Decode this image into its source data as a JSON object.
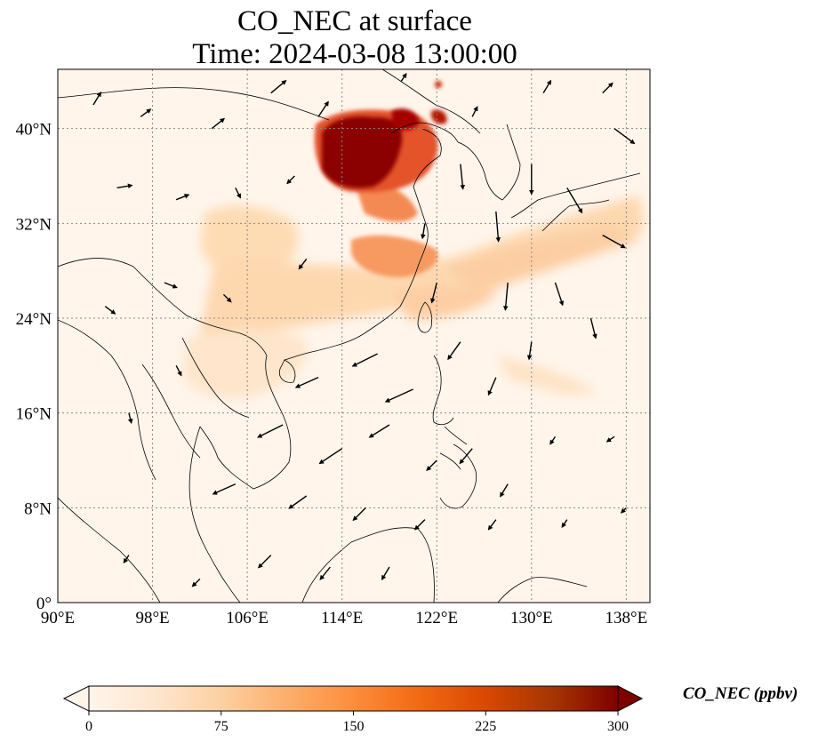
{
  "title": {
    "line1": "CO_NEC at surface",
    "line2": "Time: 2024-03-08 13:00:00"
  },
  "axes": {
    "lon_ticks": [
      "90°E",
      "98°E",
      "106°E",
      "114°E",
      "122°E",
      "130°E",
      "138°E"
    ],
    "lat_ticks": [
      "0°",
      "8°N",
      "16°N",
      "24°N",
      "32°N",
      "40°N"
    ],
    "lon_values": [
      90,
      98,
      106,
      114,
      122,
      130,
      138
    ],
    "lat_values": [
      0,
      8,
      16,
      24,
      32,
      40
    ],
    "lon_range": [
      90,
      140
    ],
    "lat_range": [
      0,
      45
    ],
    "grid": "dotted"
  },
  "colorbar": {
    "label": "CO_NEC (ppbv)",
    "ticks": [
      "0",
      "75",
      "150",
      "225",
      "300"
    ],
    "tick_values": [
      0,
      75,
      150,
      225,
      300
    ],
    "range": [
      0,
      300
    ],
    "extend": "both",
    "colormap": [
      "#fff5eb",
      "#fee6ce",
      "#fdd0a2",
      "#fdae6b",
      "#fd8d3c",
      "#f16913",
      "#d94801",
      "#a63603",
      "#7f0000"
    ]
  },
  "chart_data": {
    "type": "heatmap",
    "variable": "CO_NEC",
    "units": "ppbv",
    "plumes": [
      {
        "lon": 115.5,
        "lat": 38.5,
        "value": 300
      },
      {
        "lon": 118.5,
        "lat": 39.5,
        "value": 260
      },
      {
        "lon": 121.5,
        "lat": 39.6,
        "value": 230
      },
      {
        "lon": 118.0,
        "lat": 34.5,
        "value": 170
      },
      {
        "lon": 118.0,
        "lat": 30.0,
        "value": 140
      },
      {
        "lon": 104.0,
        "lat": 31.0,
        "value": 110
      },
      {
        "lon": 108.0,
        "lat": 32.0,
        "value": 100
      },
      {
        "lon": 128.0,
        "lat": 29.5,
        "value": 90
      },
      {
        "lon": 134.0,
        "lat": 31.0,
        "value": 85
      },
      {
        "lon": 112.0,
        "lat": 25.0,
        "value": 80
      },
      {
        "lon": 104.0,
        "lat": 19.0,
        "value": 70
      }
    ],
    "wind_vectors": [
      {
        "lon": 93,
        "lat": 42,
        "u": 0.3,
        "v": 0.5
      },
      {
        "lon": 97,
        "lat": 41,
        "u": 0.4,
        "v": 0.3
      },
      {
        "lon": 103,
        "lat": 40,
        "u": 0.5,
        "v": 0.4
      },
      {
        "lon": 108,
        "lat": 43,
        "u": 0.6,
        "v": 0.5
      },
      {
        "lon": 112,
        "lat": 41,
        "u": 0.4,
        "v": 0.6
      },
      {
        "lon": 95,
        "lat": 35,
        "u": 0.6,
        "v": 0.1
      },
      {
        "lon": 100,
        "lat": 34,
        "u": 0.5,
        "v": 0.2
      },
      {
        "lon": 105,
        "lat": 35,
        "u": 0.2,
        "v": -0.4
      },
      {
        "lon": 110,
        "lat": 36,
        "u": -0.3,
        "v": -0.3
      },
      {
        "lon": 124,
        "lat": 37,
        "u": 0.1,
        "v": -1.0
      },
      {
        "lon": 127,
        "lat": 33,
        "u": 0.1,
        "v": -1.2
      },
      {
        "lon": 130,
        "lat": 37,
        "u": 0.0,
        "v": -1.2
      },
      {
        "lon": 133,
        "lat": 35,
        "u": 0.6,
        "v": -1.0
      },
      {
        "lon": 137,
        "lat": 40,
        "u": 0.8,
        "v": -0.6
      },
      {
        "lon": 136,
        "lat": 31,
        "u": 0.9,
        "v": -0.5
      },
      {
        "lon": 128,
        "lat": 27,
        "u": -0.1,
        "v": -1.1
      },
      {
        "lon": 132,
        "lat": 27,
        "u": 0.3,
        "v": -0.9
      },
      {
        "lon": 135,
        "lat": 24,
        "u": 0.2,
        "v": -0.8
      },
      {
        "lon": 122,
        "lat": 27,
        "u": -0.2,
        "v": -0.8
      },
      {
        "lon": 117,
        "lat": 21,
        "u": -1.0,
        "v": -0.5
      },
      {
        "lon": 120,
        "lat": 18,
        "u": -1.1,
        "v": -0.5
      },
      {
        "lon": 112,
        "lat": 19,
        "u": -0.9,
        "v": -0.4
      },
      {
        "lon": 124,
        "lat": 22,
        "u": -0.5,
        "v": -0.7
      },
      {
        "lon": 127,
        "lat": 19,
        "u": -0.3,
        "v": -0.7
      },
      {
        "lon": 130,
        "lat": 22,
        "u": -0.1,
        "v": -0.7
      },
      {
        "lon": 109,
        "lat": 15,
        "u": -1.0,
        "v": -0.5
      },
      {
        "lon": 114,
        "lat": 13,
        "u": -0.9,
        "v": -0.6
      },
      {
        "lon": 118,
        "lat": 15,
        "u": -0.8,
        "v": -0.5
      },
      {
        "lon": 122,
        "lat": 12,
        "u": -0.4,
        "v": -0.4
      },
      {
        "lon": 105,
        "lat": 10,
        "u": -0.9,
        "v": -0.4
      },
      {
        "lon": 111,
        "lat": 9,
        "u": -0.7,
        "v": -0.5
      },
      {
        "lon": 116,
        "lat": 8,
        "u": -0.5,
        "v": -0.5
      },
      {
        "lon": 121,
        "lat": 7,
        "u": -0.4,
        "v": -0.4
      },
      {
        "lon": 127,
        "lat": 7,
        "u": -0.3,
        "v": -0.4
      },
      {
        "lon": 132,
        "lat": 14,
        "u": -0.2,
        "v": -0.3
      },
      {
        "lon": 137,
        "lat": 14,
        "u": -0.3,
        "v": -0.2
      },
      {
        "lon": 100,
        "lat": 20,
        "u": 0.2,
        "v": -0.4
      },
      {
        "lon": 96,
        "lat": 16,
        "u": 0.1,
        "v": -0.4
      },
      {
        "lon": 94,
        "lat": 25,
        "u": 0.4,
        "v": -0.3
      },
      {
        "lon": 99,
        "lat": 27,
        "u": 0.5,
        "v": -0.2
      },
      {
        "lon": 108,
        "lat": 4,
        "u": -0.5,
        "v": -0.5
      },
      {
        "lon": 113,
        "lat": 3,
        "u": -0.4,
        "v": -0.5
      },
      {
        "lon": 118,
        "lat": 3,
        "u": -0.3,
        "v": -0.5
      },
      {
        "lon": 96,
        "lat": 4,
        "u": -0.2,
        "v": -0.3
      },
      {
        "lon": 102,
        "lat": 2,
        "u": -0.3,
        "v": -0.3
      },
      {
        "lon": 125,
        "lat": 13,
        "u": -0.5,
        "v": -0.6
      },
      {
        "lon": 128,
        "lat": 10,
        "u": -0.3,
        "v": -0.5
      },
      {
        "lon": 133,
        "lat": 7,
        "u": -0.2,
        "v": -0.3
      },
      {
        "lon": 138,
        "lat": 8,
        "u": -0.2,
        "v": -0.2
      },
      {
        "lon": 104,
        "lat": 26,
        "u": 0.3,
        "v": -0.3
      },
      {
        "lon": 111,
        "lat": 29,
        "u": -0.3,
        "v": -0.4
      },
      {
        "lon": 121,
        "lat": 32,
        "u": -0.1,
        "v": -0.6
      },
      {
        "lon": 125,
        "lat": 41,
        "u": 0.2,
        "v": 0.4
      },
      {
        "lon": 131,
        "lat": 43,
        "u": 0.3,
        "v": 0.5
      },
      {
        "lon": 136,
        "lat": 43,
        "u": 0.4,
        "v": 0.4
      },
      {
        "lon": 119,
        "lat": 44,
        "u": 0.2,
        "v": 0.3
      }
    ]
  }
}
